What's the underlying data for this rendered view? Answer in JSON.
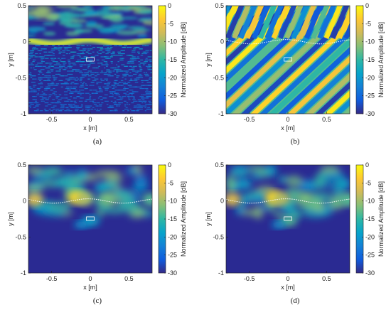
{
  "figure": {
    "colormap": [
      "#352a87",
      "#0f5cdd",
      "#1481d6",
      "#06a4ca",
      "#2eb7a4",
      "#87bf77",
      "#d1bb59",
      "#fec832",
      "#f9fb0e"
    ],
    "background_color": "#2a2a92"
  },
  "chart_data": [
    {
      "type": "heatmap",
      "caption": "(a)",
      "xlabel": "x [m]",
      "ylabel": "y [m]",
      "colorbar_label": "Normalized Amplitude [dB]",
      "xlim": [
        -0.8,
        0.8
      ],
      "ylim": [
        -1,
        0.5
      ],
      "clim": [
        -30,
        0
      ],
      "xticks": [
        "-0.5",
        "0",
        "0.5"
      ],
      "yticks": [
        "0.5",
        "0",
        "-0.5",
        "-1"
      ],
      "cticks": [
        "0",
        "-5",
        "-10",
        "-15",
        "-20",
        "-25",
        "-30"
      ],
      "features": "bright band along curved surface y≈0, ripples above, faint speckle below",
      "target_box": {
        "x": [
          -0.05,
          0.05
        ],
        "y": [
          -0.27,
          -0.22
        ]
      }
    },
    {
      "type": "heatmap",
      "caption": "(b)",
      "xlabel": "x [m]",
      "ylabel": "y [m]",
      "colorbar_label": "Normalized Amplitude [dB]",
      "xlim": [
        -0.8,
        0.8
      ],
      "ylim": [
        -1,
        0.5
      ],
      "clim": [
        -30,
        0
      ],
      "xticks": [
        "-0.5",
        "0",
        "0.5"
      ],
      "yticks": [
        "0.5",
        "0",
        "-0.5",
        "-1"
      ],
      "cticks": [
        "0",
        "-5",
        "-10",
        "-15",
        "-20",
        "-25",
        "-30"
      ],
      "features": "diagonal stripe pattern with dotted surface curve",
      "target_box": {
        "x": [
          -0.05,
          0.05
        ],
        "y": [
          -0.27,
          -0.22
        ]
      }
    },
    {
      "type": "heatmap",
      "caption": "(c)",
      "xlabel": "x [m]",
      "ylabel": "y [m]",
      "colorbar_label": "Normalized Amplitude [dB]",
      "xlim": [
        -0.8,
        0.8
      ],
      "ylim": [
        -1,
        0.5
      ],
      "clim": [
        -30,
        0
      ],
      "xticks": [
        "-0.5",
        "0",
        "0.5"
      ],
      "yticks": [
        "0.5",
        "0",
        "-0.5",
        "-1"
      ],
      "cticks": [
        "0",
        "-5",
        "-10",
        "-15",
        "-20",
        "-25",
        "-30"
      ],
      "features": "blobs near surface, dotted curve, target region",
      "target_box": {
        "x": [
          -0.05,
          0.05
        ],
        "y": [
          -0.27,
          -0.22
        ]
      }
    },
    {
      "type": "heatmap",
      "caption": "(d)",
      "xlabel": "x [m]",
      "ylabel": "y [m]",
      "colorbar_label": "Normalized Amplitude [dB]",
      "xlim": [
        -0.8,
        0.8
      ],
      "ylim": [
        -1,
        0.5
      ],
      "clim": [
        -30,
        0
      ],
      "xticks": [
        "-0.5",
        "0",
        "0.5"
      ],
      "yticks": [
        "0.5",
        "0",
        "-0.5",
        "-1"
      ],
      "cticks": [
        "0",
        "-5",
        "-10",
        "-15",
        "-20",
        "-25",
        "-30"
      ],
      "features": "blobs near surface, dotted curve, stronger target response",
      "target_box": {
        "x": [
          -0.05,
          0.05
        ],
        "y": [
          -0.27,
          -0.22
        ]
      }
    }
  ]
}
